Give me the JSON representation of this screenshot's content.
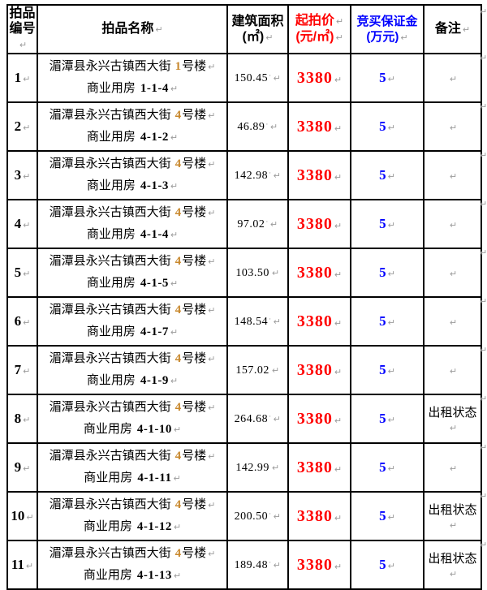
{
  "marks": {
    "return": "↵",
    "space_dot": "·"
  },
  "colors": {
    "price": "#ff0000",
    "deposit": "#0000ff",
    "building_digit": "#c8882d",
    "formatting_mark": "#9b9b9b",
    "border": "#000000"
  },
  "header": {
    "lot_no_line1": "拍品",
    "lot_no_line2": "编号",
    "name": "拍品名称",
    "area_line1": "建筑面积",
    "area_line2": "(㎡)",
    "price_line1": "起拍价",
    "price_line2": "(元/㎡)",
    "deposit_line1": "竞买保证金",
    "deposit_line2": "(万元)",
    "remark": "备注"
  },
  "rows": [
    {
      "no": "1",
      "name_prefix": "湄潭县永兴古镇西大街",
      "building_no": "1",
      "building_suffix": "号楼",
      "unit_label": "商业用房",
      "unit_no": "1-1-4",
      "area": "150.45",
      "area_dot": "·",
      "price": "3380",
      "deposit": "5",
      "remark": ""
    },
    {
      "no": "2",
      "name_prefix": "湄潭县永兴古镇西大街",
      "building_no": "4",
      "building_suffix": "号楼",
      "unit_label": "商业用房",
      "unit_no": "4-1-2",
      "area": "46.89",
      "area_dot": "·",
      "price": "3380",
      "deposit": "5",
      "remark": ""
    },
    {
      "no": "3",
      "name_prefix": "湄潭县永兴古镇西大街",
      "building_no": "4",
      "building_suffix": "号楼",
      "unit_label": "商业用房",
      "unit_no": "4-1-3",
      "area": "142.98",
      "area_dot": "·",
      "price": "3380",
      "deposit": "5",
      "remark": ""
    },
    {
      "no": "4",
      "name_prefix": "湄潭县永兴古镇西大街",
      "building_no": "4",
      "building_suffix": "号楼",
      "unit_label": "商业用房",
      "unit_no": "4-1-4",
      "area": "97.02",
      "area_dot": "·",
      "price": "3380",
      "deposit": "5",
      "remark": ""
    },
    {
      "no": "5",
      "name_prefix": "湄潭县永兴古镇西大街",
      "building_no": "4",
      "building_suffix": "号楼",
      "unit_label": "商业用房",
      "unit_no": "4-1-5",
      "area": "103.50",
      "area_dot": "",
      "price": "3380",
      "deposit": "5",
      "remark": ""
    },
    {
      "no": "6",
      "name_prefix": "湄潭县永兴古镇西大街",
      "building_no": "4",
      "building_suffix": "号楼",
      "unit_label": "商业用房",
      "unit_no": "4-1-7",
      "area": "148.54",
      "area_dot": "·",
      "price": "3380",
      "deposit": "5",
      "remark": ""
    },
    {
      "no": "7",
      "name_prefix": "湄潭县永兴古镇西大街",
      "building_no": "4",
      "building_suffix": "号楼",
      "unit_label": "商业用房",
      "unit_no": "4-1-9",
      "area": "157.02",
      "area_dot": "",
      "price": "3380",
      "deposit": "5",
      "remark": ""
    },
    {
      "no": "8",
      "name_prefix": "湄潭县永兴古镇西大街",
      "building_no": "4",
      "building_suffix": "号楼",
      "unit_label": "商业用房",
      "unit_no": "4-1-10",
      "area": "264.68",
      "area_dot": "·",
      "price": "3380",
      "deposit": "5",
      "remark": "出租状态"
    },
    {
      "no": "9",
      "name_prefix": "湄潭县永兴古镇西大街",
      "building_no": "4",
      "building_suffix": "号楼",
      "unit_label": "商业用房",
      "unit_no": "4-1-11",
      "area": "142.99",
      "area_dot": "",
      "price": "3380",
      "deposit": "5",
      "remark": ""
    },
    {
      "no": "10",
      "name_prefix": "湄潭县永兴古镇西大街",
      "building_no": "4",
      "building_suffix": "号楼",
      "unit_label": "商业用房",
      "unit_no": "4-1-12",
      "area": "200.50",
      "area_dot": "·",
      "price": "3380",
      "deposit": "5",
      "remark": "出租状态"
    },
    {
      "no": "11",
      "name_prefix": "湄潭县永兴古镇西大街",
      "building_no": "4",
      "building_suffix": "号楼",
      "unit_label": "商业用房",
      "unit_no": "4-1-13",
      "area": "189.48",
      "area_dot": "·",
      "price": "3380",
      "deposit": "5",
      "remark": "出租状态"
    }
  ]
}
